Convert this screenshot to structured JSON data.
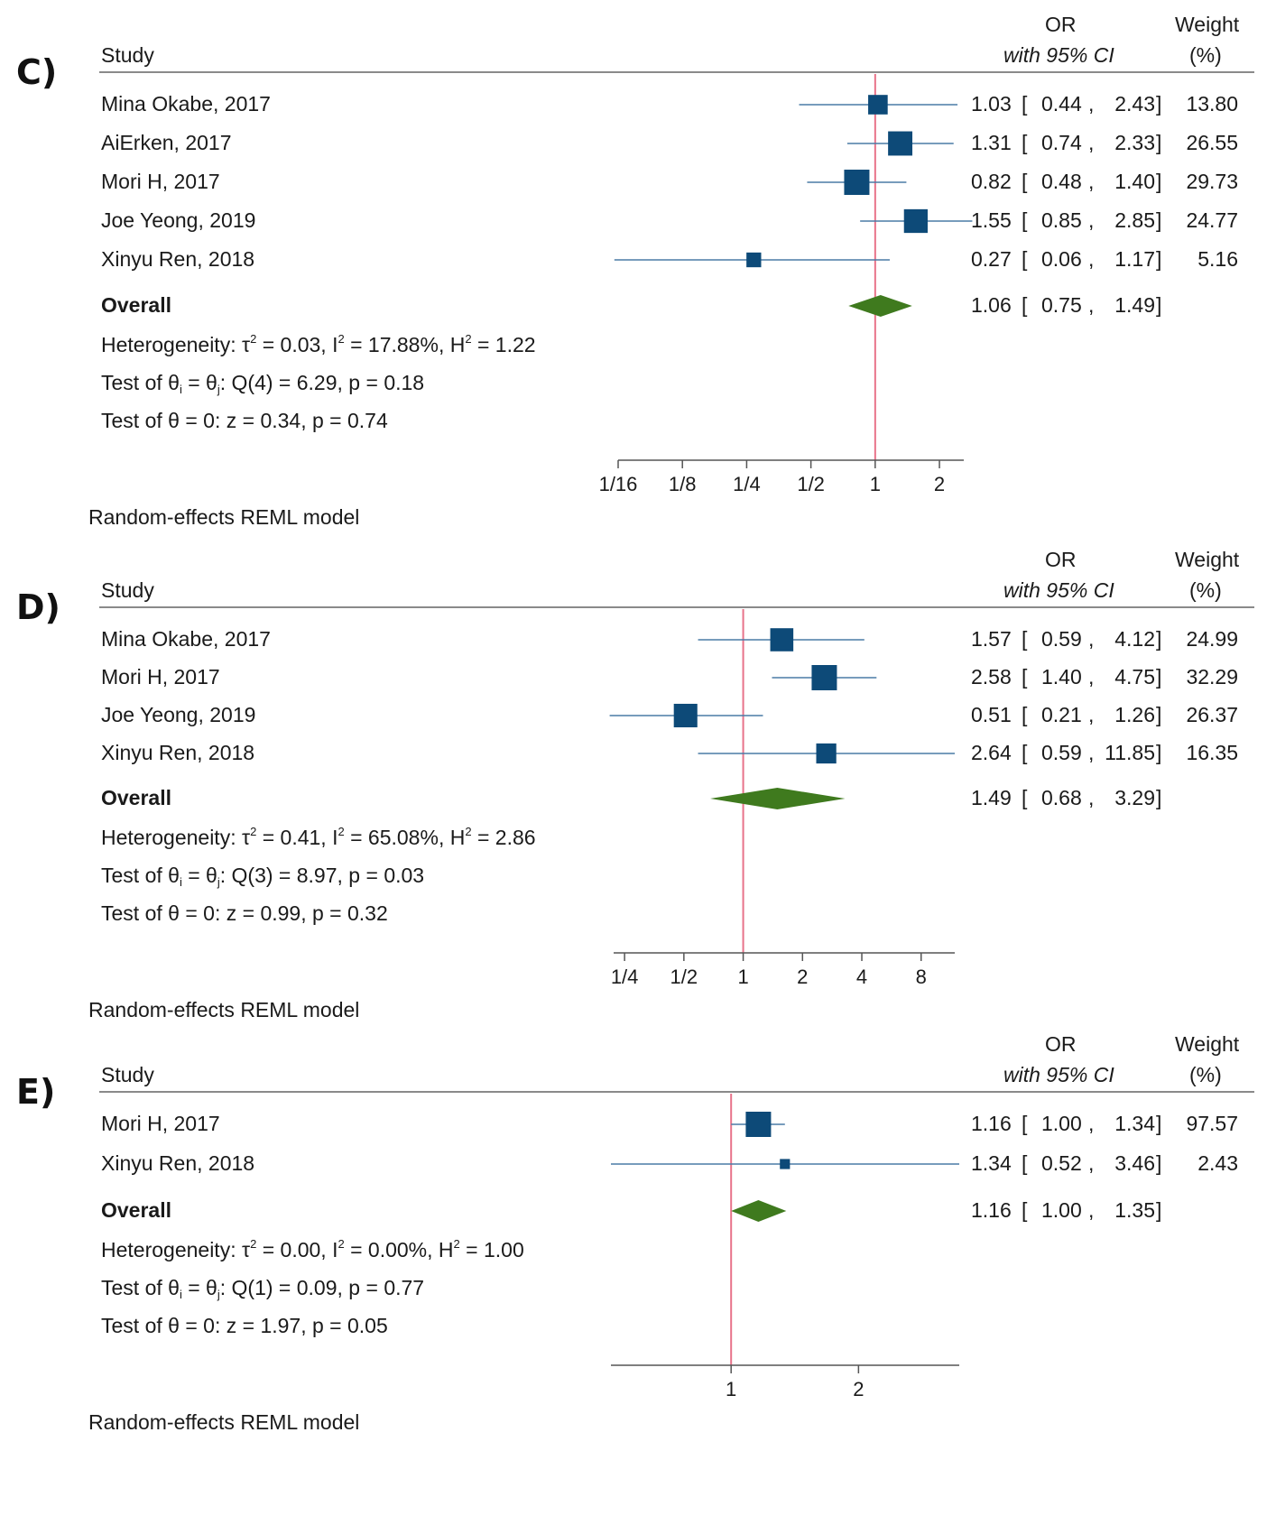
{
  "header": {
    "study": "Study",
    "or": "OR",
    "ci": "with 95% CI",
    "weight": "Weight",
    "weight_unit": "(%)"
  },
  "chart_data": [
    {
      "type": "forest",
      "panel_label": "C)",
      "scale": "log2",
      "xlim": [
        0.0625,
        2.6
      ],
      "reference_line": 1,
      "ticks": [
        0.0625,
        0.125,
        0.25,
        0.5,
        1,
        2
      ],
      "tick_labels": [
        "1/16",
        "1/8",
        "1/4",
        "1/2",
        "1",
        "2"
      ],
      "studies": [
        {
          "name": "Mina Okabe, 2017",
          "or": 1.03,
          "lo": 0.44,
          "hi": 2.43,
          "weight": 13.8,
          "or_text": "1.03",
          "lo_text": "0.44",
          "hi_text": "2.43",
          "weight_text": "13.80"
        },
        {
          "name": "AiErken, 2017",
          "or": 1.31,
          "lo": 0.74,
          "hi": 2.33,
          "weight": 26.55,
          "or_text": "1.31",
          "lo_text": "0.74",
          "hi_text": "2.33",
          "weight_text": "26.55"
        },
        {
          "name": "Mori H, 2017",
          "or": 0.82,
          "lo": 0.48,
          "hi": 1.4,
          "weight": 29.73,
          "or_text": "0.82",
          "lo_text": "0.48",
          "hi_text": "1.40",
          "weight_text": "29.73"
        },
        {
          "name": "Joe Yeong, 2019",
          "or": 1.55,
          "lo": 0.85,
          "hi": 2.85,
          "weight": 24.77,
          "or_text": "1.55",
          "lo_text": "0.85",
          "hi_text": "2.85",
          "weight_text": "24.77"
        },
        {
          "name": "Xinyu Ren, 2018",
          "or": 0.27,
          "lo": 0.06,
          "hi": 1.17,
          "weight": 5.16,
          "or_text": "0.27",
          "lo_text": "0.06",
          "hi_text": "1.17",
          "weight_text": "5.16"
        }
      ],
      "overall": {
        "label": "Overall",
        "or": 1.06,
        "lo": 0.75,
        "hi": 1.49,
        "or_text": "1.06",
        "lo_text": "0.75",
        "hi_text": "1.49"
      },
      "heterogeneity": {
        "tau2": "0.03",
        "i2": "17.88%",
        "h2": "1.22"
      },
      "q_test": {
        "df": "4",
        "q": "6.29",
        "p": "0.18"
      },
      "z_test": {
        "z": "0.34",
        "p": "0.74"
      },
      "model": "Random-effects REML model"
    },
    {
      "type": "forest",
      "panel_label": "D)",
      "scale": "log2",
      "xlim": [
        0.22,
        11.85
      ],
      "reference_line": 1,
      "ticks": [
        0.25,
        0.5,
        1,
        2,
        4,
        8
      ],
      "tick_labels": [
        "1/4",
        "1/2",
        "1",
        "2",
        "4",
        "8"
      ],
      "studies": [
        {
          "name": "Mina Okabe, 2017",
          "or": 1.57,
          "lo": 0.59,
          "hi": 4.12,
          "weight": 24.99,
          "or_text": "1.57",
          "lo_text": "0.59",
          "hi_text": "4.12",
          "weight_text": "24.99"
        },
        {
          "name": "Mori H, 2017",
          "or": 2.58,
          "lo": 1.4,
          "hi": 4.75,
          "weight": 32.29,
          "or_text": "2.58",
          "lo_text": "1.40",
          "hi_text": "4.75",
          "weight_text": "32.29"
        },
        {
          "name": "Joe Yeong, 2019",
          "or": 0.51,
          "lo": 0.21,
          "hi": 1.26,
          "weight": 26.37,
          "or_text": "0.51",
          "lo_text": "0.21",
          "hi_text": "1.26",
          "weight_text": "26.37"
        },
        {
          "name": "Xinyu Ren, 2018",
          "or": 2.64,
          "lo": 0.59,
          "hi": 11.85,
          "weight": 16.35,
          "or_text": "2.64",
          "lo_text": "0.59",
          "hi_text": "11.85",
          "weight_text": "16.35"
        }
      ],
      "overall": {
        "label": "Overall",
        "or": 1.49,
        "lo": 0.68,
        "hi": 3.29,
        "or_text": "1.49",
        "lo_text": "0.68",
        "hi_text": "3.29"
      },
      "heterogeneity": {
        "tau2": "0.41",
        "i2": "65.08%",
        "h2": "2.86"
      },
      "q_test": {
        "df": "3",
        "q": "8.97",
        "p": "0.03"
      },
      "z_test": {
        "z": "0.99",
        "p": "0.32"
      },
      "model": "Random-effects REML model"
    },
    {
      "type": "forest",
      "panel_label": "E)",
      "scale": "log2",
      "xlim": [
        0.52,
        3.46
      ],
      "reference_line": 1,
      "ticks": [
        1,
        2
      ],
      "tick_labels": [
        "1",
        "2"
      ],
      "studies": [
        {
          "name": "Mori H, 2017",
          "or": 1.16,
          "lo": 1.0,
          "hi": 1.34,
          "weight": 97.57,
          "or_text": "1.16",
          "lo_text": "1.00",
          "hi_text": "1.34",
          "weight_text": "97.57"
        },
        {
          "name": "Xinyu Ren, 2018",
          "or": 1.34,
          "lo": 0.52,
          "hi": 3.46,
          "weight": 2.43,
          "or_text": "1.34",
          "lo_text": "0.52",
          "hi_text": "3.46",
          "weight_text": "2.43"
        }
      ],
      "overall": {
        "label": "Overall",
        "or": 1.16,
        "lo": 1.0,
        "hi": 1.35,
        "or_text": "1.16",
        "lo_text": "1.00",
        "hi_text": "1.35"
      },
      "heterogeneity": {
        "tau2": "0.00",
        "i2": "0.00%",
        "h2": "1.00"
      },
      "q_test": {
        "df": "1",
        "q": "0.09",
        "p": "0.77"
      },
      "z_test": {
        "z": "1.97",
        "p": "0.05"
      },
      "model": "Random-effects REML model"
    }
  ],
  "colors": {
    "marker": "#0d4a78",
    "ci_line": "#4a7ba6",
    "diamond": "#3f7a1e",
    "ref_line": "#e8738a",
    "axis": "#555555"
  }
}
